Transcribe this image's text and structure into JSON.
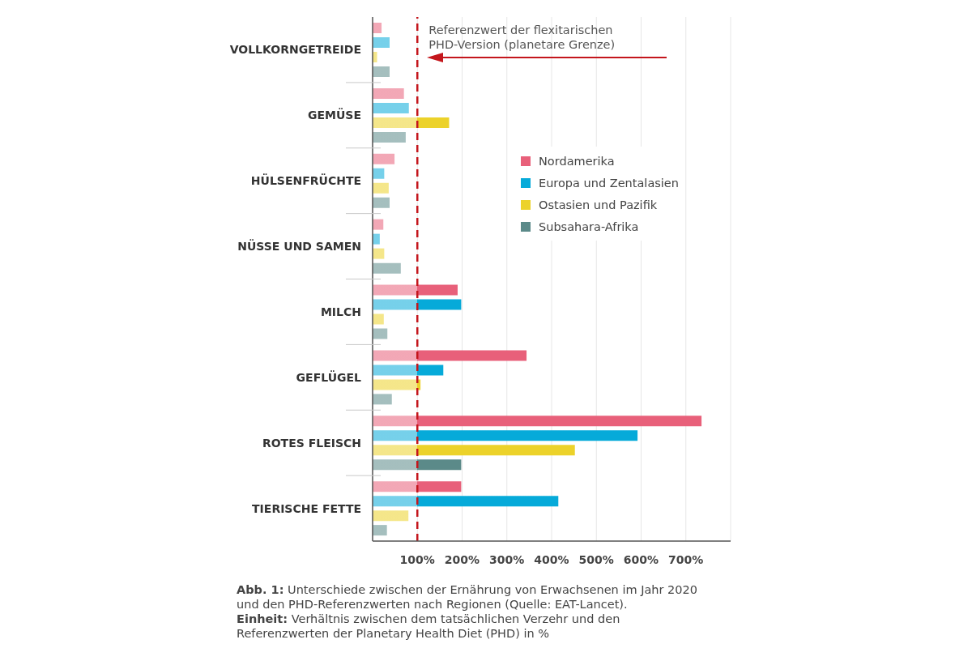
{
  "chart_data": {
    "type": "bar",
    "orientation": "horizontal",
    "categories": [
      "VOLLKORNGETREIDE",
      "GEMÜSE",
      "HÜLSENFRÜCHTE",
      "NÜSSE UND SAMEN",
      "MILCH",
      "GEFLÜGEL",
      "ROTES FLEISCH",
      "TIERISCHE FETTE"
    ],
    "series": [
      {
        "name": "Nordamerika",
        "color": "#e8607a",
        "values": [
          20,
          70,
          49,
          24,
          190,
          344,
          735,
          198
        ]
      },
      {
        "name": "Europa und Zentalasien",
        "color": "#06aad9",
        "values": [
          38,
          81,
          26,
          16,
          198,
          158,
          592,
          415
        ]
      },
      {
        "name": "Ostasien und Pazifik",
        "color": "#ecd22a",
        "values": [
          10,
          171,
          36,
          26,
          25,
          107,
          452,
          80
        ]
      },
      {
        "name": "Subsahara-Afrika",
        "color": "#5b8a89",
        "values": [
          38,
          74,
          38,
          63,
          33,
          43,
          198,
          32
        ]
      }
    ],
    "xlim": [
      0,
      800
    ],
    "xticks": [
      {
        "value": 100,
        "label": "100%"
      },
      {
        "value": 200,
        "label": "200%"
      },
      {
        "value": 300,
        "label": "300%"
      },
      {
        "value": 400,
        "label": "400%"
      },
      {
        "value": 500,
        "label": "500%"
      },
      {
        "value": 600,
        "label": "600%"
      },
      {
        "value": 700,
        "label": "700%"
      }
    ],
    "grid": "x",
    "legend": "top right",
    "ref_lines": [
      {
        "axis": "x",
        "value": 100,
        "label": "Referenzwert der flexitarischen PHD-Version (planetare Grenze)",
        "color": "#c4161c",
        "line_style": "dashed"
      }
    ],
    "annotations": [
      "Abb. 1: Unterschiede zwischen der Ernährung von Erwachsenen im Jahr 2020 und den PHD-Referenzwerten nach Regionen (Quelle: EAT-Lancet).",
      "Einheit: Verhältnis zwischen dem tatsächlichen Verzehr und den Referenzwerten der Planetary Health Diet (PHD) in %"
    ]
  }
}
